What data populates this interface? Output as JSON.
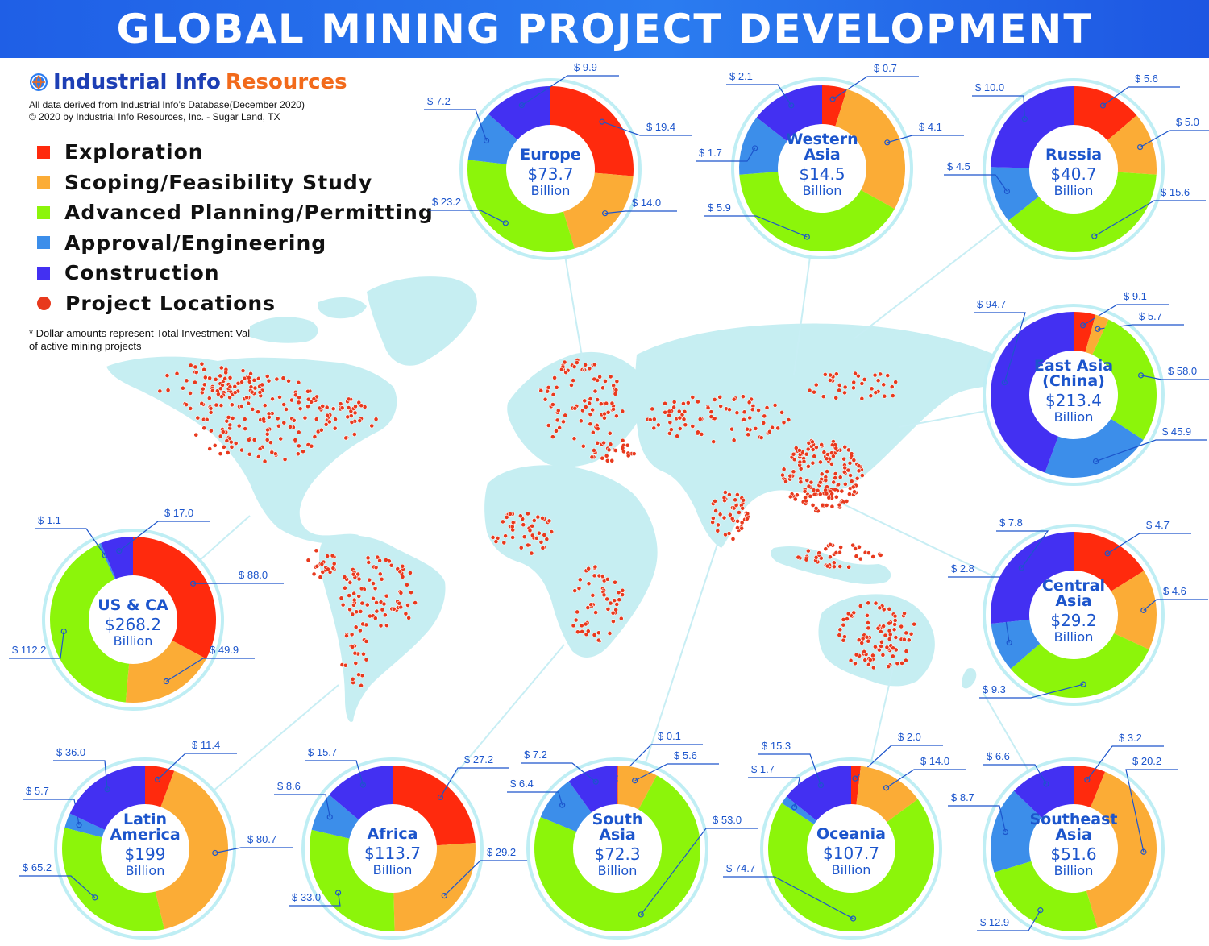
{
  "title": "GLOBAL MINING PROJECT DEVELOPMENT",
  "brand": {
    "name_part1": "Industrial Info",
    "name_part2": "Resources"
  },
  "source_line1": "All data derived from Industrial Info’s Database(December 2020)",
  "source_line2": "© 2020 by Industrial Info Resources, Inc. - Sugar Land, TX",
  "footnote_line1": "* Dollar amounts represent Total Investment Value",
  "footnote_line2": "of active mining projects",
  "legend": [
    {
      "label": "Exploration",
      "color": "#ff2a0d",
      "shape": "square"
    },
    {
      "label": "Scoping/Feasibility Study",
      "color": "#fbac36",
      "shape": "square"
    },
    {
      "label": "Advanced Planning/Permitting",
      "color": "#8cf50a",
      "shape": "square"
    },
    {
      "label": "Approval/Engineering",
      "color": "#3c8eea",
      "shape": "square"
    },
    {
      "label": "Construction",
      "color": "#4330f2",
      "shape": "square"
    },
    {
      "label": "Project Locations",
      "color": "#e8391d",
      "shape": "circle"
    }
  ],
  "colors": {
    "map_land": "#c6eef2",
    "location_dot": "#e8391d",
    "ring": "#bfeef4",
    "connector": "#c8eef4",
    "label_text": "#1c55cc"
  },
  "chart_data": {
    "type": "pie",
    "units": "Billion USD",
    "stages": [
      "Exploration",
      "Scoping/Feasibility Study",
      "Advanced Planning/Permitting",
      "Approval/Engineering",
      "Construction"
    ],
    "regions": [
      {
        "name_lines": [
          "Europe"
        ],
        "total": "$73.7",
        "unit": "Billion",
        "values": [
          19.4,
          14.0,
          23.2,
          7.2,
          9.9
        ],
        "labels": [
          "$ 19.4",
          "$ 14.0",
          "$ 23.2",
          "$ 7.2",
          "$ 9.9"
        ]
      },
      {
        "name_lines": [
          "Western",
          "Asia"
        ],
        "total": "$14.5",
        "unit": "Billion",
        "values": [
          0.7,
          4.1,
          5.9,
          1.7,
          2.1
        ],
        "labels": [
          "$ 0.7",
          "$ 4.1",
          "$ 5.9",
          "$ 1.7",
          "$ 2.1"
        ]
      },
      {
        "name_lines": [
          "Russia"
        ],
        "total": "$40.7",
        "unit": "Billion",
        "values": [
          5.6,
          5.0,
          15.6,
          4.5,
          10.0
        ],
        "labels": [
          "$ 5.6",
          "$ 5.0",
          "$ 15.6",
          "$ 4.5",
          "$ 10.0"
        ]
      },
      {
        "name_lines": [
          "East Asia",
          "(China)"
        ],
        "total": "$213.4",
        "unit": "Billion",
        "values": [
          9.1,
          5.7,
          58.0,
          45.9,
          94.7
        ],
        "labels": [
          "$ 9.1",
          "$ 5.7",
          "$ 58.0",
          "$ 45.9",
          "$ 94.7"
        ]
      },
      {
        "name_lines": [
          "Central",
          "Asia"
        ],
        "total": "$29.2",
        "unit": "Billion",
        "values": [
          4.7,
          4.6,
          9.3,
          2.8,
          7.8
        ],
        "labels": [
          "$ 4.7",
          "$ 4.6",
          "$ 9.3",
          "$ 2.8",
          "$ 7.8"
        ]
      },
      {
        "name_lines": [
          "US & CA"
        ],
        "total": "$268.2",
        "unit": "Billion",
        "values": [
          88.0,
          49.9,
          112.2,
          1.1,
          17.0
        ],
        "labels": [
          "$ 88.0",
          "$ 49.9",
          "$ 112.2",
          "$ 1.1",
          "$ 17.0"
        ]
      },
      {
        "name_lines": [
          "Latin",
          "America"
        ],
        "total": "$199",
        "unit": "Billion",
        "values": [
          11.4,
          80.7,
          65.2,
          5.7,
          36.0
        ],
        "labels": [
          "$ 11.4",
          "$ 80.7",
          "$ 65.2",
          "$ 5.7",
          "$ 36.0"
        ]
      },
      {
        "name_lines": [
          "Africa"
        ],
        "total": "$113.7",
        "unit": "Billion",
        "values": [
          27.2,
          29.2,
          33.0,
          8.6,
          15.7
        ],
        "labels": [
          "$ 27.2",
          "$ 29.2",
          "$ 33.0",
          "$ 8.6",
          "$ 15.7"
        ]
      },
      {
        "name_lines": [
          "South",
          "Asia"
        ],
        "total": "$72.3",
        "unit": "Billion",
        "values": [
          0.1,
          5.6,
          53.0,
          6.4,
          7.2
        ],
        "labels": [
          "$ 0.1",
          "$ 5.6",
          "$ 53.0",
          "$ 6.4",
          "$ 7.2"
        ]
      },
      {
        "name_lines": [
          "Oceania"
        ],
        "total": "$107.7",
        "unit": "Billion",
        "values": [
          2.0,
          14.0,
          74.7,
          1.7,
          15.3
        ],
        "labels": [
          "$ 2.0",
          "$ 14.0",
          "$ 74.7",
          "$ 1.7",
          "$ 15.3"
        ]
      },
      {
        "name_lines": [
          "Southeast",
          "Asia"
        ],
        "total": "$51.6",
        "unit": "Billion",
        "values": [
          3.2,
          20.2,
          12.9,
          8.7,
          6.6
        ],
        "labels": [
          "$ 3.2",
          "$ 20.2",
          "$ 12.9",
          "$ 8.7",
          "$ 6.6"
        ]
      }
    ]
  }
}
